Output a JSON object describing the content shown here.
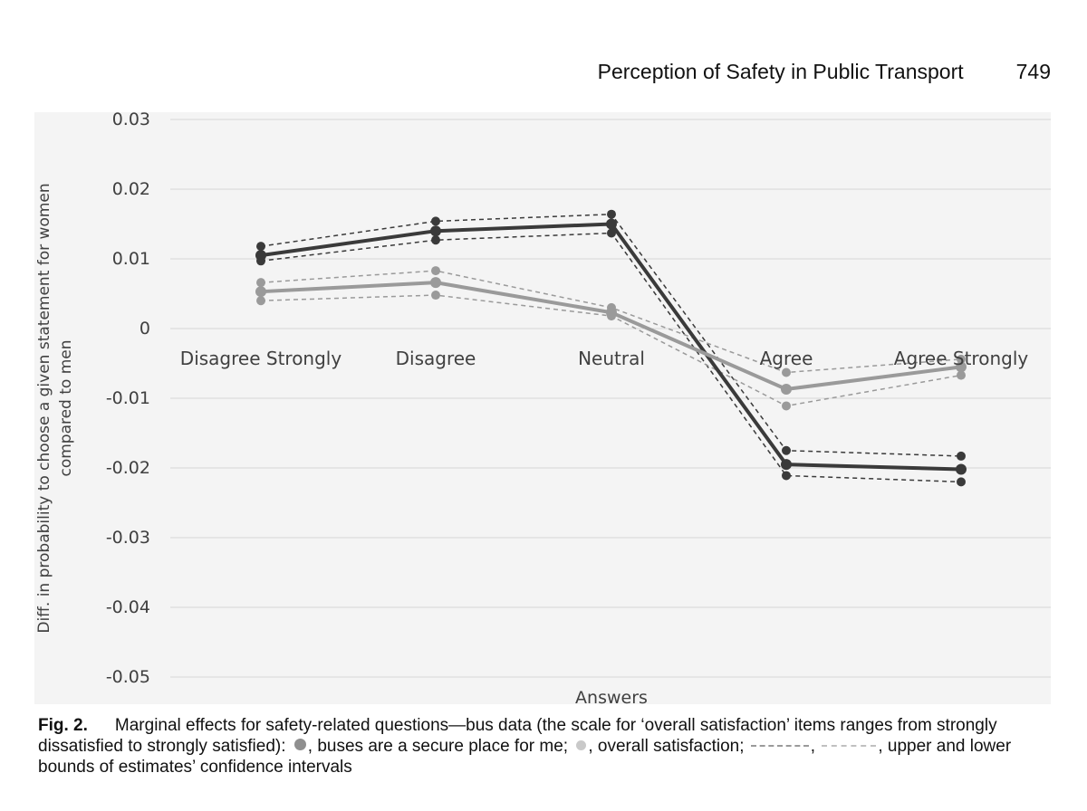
{
  "running_head": {
    "title": "Perception of Safety in Public Transport",
    "page": "749"
  },
  "chart_data": {
    "type": "line",
    "categories": [
      "Disagree Strongly",
      "Disagree",
      "Neutral",
      "Agree",
      "Agree Strongly"
    ],
    "series": [
      {
        "name": "buses are a secure place for me",
        "role": "estimate",
        "color": "#3a3a3a",
        "values": [
          0.0105,
          0.014,
          0.015,
          -0.0195,
          -0.0202
        ]
      },
      {
        "name": "buses are a secure place for me (upper bound)",
        "role": "ci",
        "color": "#3a3a3a",
        "values": [
          0.0118,
          0.0154,
          0.0164,
          -0.0175,
          -0.0183
        ]
      },
      {
        "name": "buses are a secure place for me (lower bound)",
        "role": "ci",
        "color": "#3a3a3a",
        "values": [
          0.0097,
          0.0127,
          0.0137,
          -0.0211,
          -0.022
        ]
      },
      {
        "name": "overall satisfaction",
        "role": "estimate",
        "color": "#9a9a9a",
        "values": [
          0.0053,
          0.0066,
          0.0023,
          -0.0087,
          -0.0055
        ]
      },
      {
        "name": "overall satisfaction (upper bound)",
        "role": "ci",
        "color": "#9a9a9a",
        "values": [
          0.0066,
          0.0083,
          0.003,
          -0.0063,
          -0.0044
        ]
      },
      {
        "name": "overall satisfaction (lower bound)",
        "role": "ci",
        "color": "#9a9a9a",
        "values": [
          0.004,
          0.0048,
          0.0018,
          -0.0111,
          -0.0067
        ]
      }
    ],
    "title": "",
    "xlabel": "Answers",
    "ylabel_lines": [
      "Diff. in probability to choose a given statement for women",
      "compared to men"
    ],
    "ylim": [
      -0.05,
      0.03
    ],
    "yticks": [
      "0.03",
      "0.02",
      "0.01",
      "0",
      "-0.01",
      "-0.02",
      "-0.03",
      "-0.04",
      "-0.05"
    ],
    "ytick_values": [
      0.03,
      0.02,
      0.01,
      0,
      -0.01,
      -0.02,
      -0.03,
      -0.04,
      -0.05
    ],
    "grid": true
  },
  "caption": {
    "label": "Fig. 2.",
    "text_1": "Marginal effects for safety-related questions—bus data (the scale for ‘overall satisfaction’ items ranges from strongly dissatisfied to strongly satisfied):",
    "text_2": ", buses are a secure place for me;",
    "text_3": ", overall satisfaction;",
    "text_4": ",",
    "text_5": ", upper and lower bounds of estimates’ confidence intervals"
  }
}
